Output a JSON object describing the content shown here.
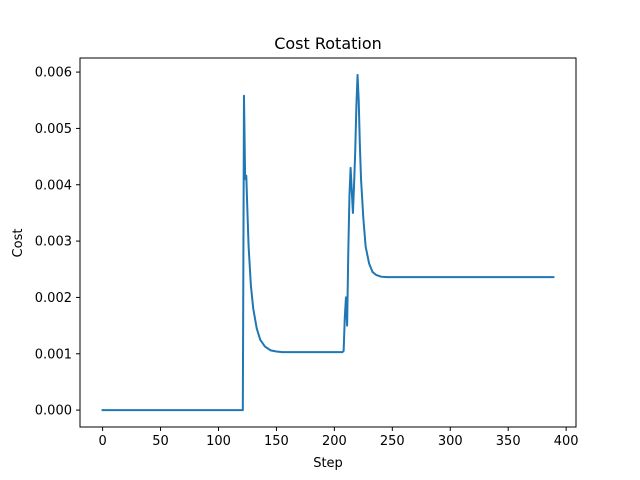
{
  "chart_data": {
    "type": "line",
    "title": "Cost Rotation",
    "xlabel": "Step",
    "ylabel": "Cost",
    "xlim": [
      -19.5,
      408.5
    ],
    "ylim": [
      -0.0003,
      0.00625
    ],
    "xticks": [
      0,
      50,
      100,
      150,
      200,
      250,
      300,
      350,
      400
    ],
    "yticks": [
      0.0,
      0.001,
      0.002,
      0.003,
      0.004,
      0.005,
      0.006
    ],
    "xtick_labels": [
      "0",
      "50",
      "100",
      "150",
      "200",
      "250",
      "300",
      "350",
      "400"
    ],
    "ytick_labels": [
      "0.000",
      "0.001",
      "0.002",
      "0.003",
      "0.004",
      "0.005",
      "0.006"
    ],
    "grid": false,
    "legend": "none",
    "series": [
      {
        "color": "#1f77b4",
        "x": [
          0,
          50,
          100,
          121,
          122,
          123,
          124,
          125,
          126,
          128,
          130,
          133,
          136,
          140,
          145,
          150,
          155,
          160,
          170,
          180,
          190,
          200,
          207,
          208,
          209,
          210,
          211,
          212,
          213,
          214,
          215,
          216,
          217,
          218,
          219,
          220,
          221,
          222,
          223,
          225,
          227,
          230,
          233,
          236,
          240,
          245,
          250,
          260,
          280,
          300,
          350,
          389
        ],
        "y": [
          0.0,
          0.0,
          0.0,
          0.0,
          0.00558,
          0.0041,
          0.00416,
          0.0035,
          0.0029,
          0.0022,
          0.0018,
          0.00145,
          0.00125,
          0.00113,
          0.00106,
          0.00104,
          0.00103,
          0.00103,
          0.00103,
          0.00103,
          0.00103,
          0.00103,
          0.00103,
          0.00105,
          0.00165,
          0.002,
          0.0015,
          0.0028,
          0.0038,
          0.0043,
          0.0039,
          0.0035,
          0.004,
          0.0046,
          0.0054,
          0.00595,
          0.0055,
          0.0047,
          0.0041,
          0.0034,
          0.0029,
          0.0026,
          0.00245,
          0.0024,
          0.00237,
          0.00236,
          0.00236,
          0.00236,
          0.00236,
          0.00236,
          0.00236,
          0.00236
        ]
      }
    ]
  }
}
